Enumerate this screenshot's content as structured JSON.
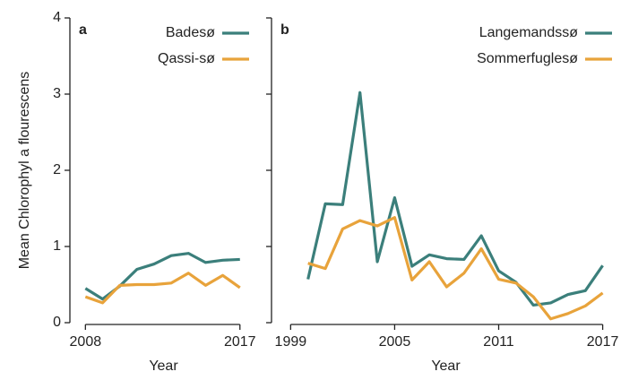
{
  "chart_data": [
    {
      "type": "line",
      "panel": "a",
      "y_label": "Mean Chlorophyl a flourescens",
      "x_label": "Year",
      "x": [
        2008,
        2009,
        2010,
        2011,
        2012,
        2013,
        2014,
        2015,
        2016,
        2017
      ],
      "series": [
        {
          "name": "Badesø",
          "color": "#3b7f7b",
          "values": [
            0.45,
            0.31,
            0.48,
            0.7,
            0.77,
            0.88,
            0.91,
            0.79,
            0.82,
            0.83
          ]
        },
        {
          "name": "Qassi-sø",
          "color": "#e8a33b",
          "values": [
            0.34,
            0.26,
            0.49,
            0.5,
            0.5,
            0.52,
            0.65,
            0.49,
            0.62,
            0.46
          ]
        }
      ],
      "xlim": [
        2007.2,
        2017.9
      ],
      "xticks": [
        2008,
        2017
      ],
      "ylim": [
        0,
        4
      ],
      "yticks": [
        0,
        1,
        2,
        3,
        4
      ],
      "legend": "upper right"
    },
    {
      "type": "line",
      "panel": "b",
      "x_label": "Year",
      "x": [
        2000,
        2001,
        2002,
        2003,
        2004,
        2005,
        2006,
        2007,
        2008,
        2009,
        2010,
        2011,
        2012,
        2013,
        2014,
        2015,
        2016,
        2017
      ],
      "series": [
        {
          "name": "Langemandssø",
          "color": "#3b7f7b",
          "values": [
            0.57,
            1.56,
            1.55,
            3.02,
            0.8,
            1.64,
            0.74,
            0.89,
            0.84,
            0.83,
            1.14,
            0.68,
            0.53,
            0.23,
            0.26,
            0.37,
            0.42,
            0.75
          ]
        },
        {
          "name": "Sommerfuglesø",
          "color": "#e8a33b",
          "values": [
            0.78,
            0.71,
            1.23,
            1.34,
            1.27,
            1.38,
            0.56,
            0.8,
            0.47,
            0.65,
            0.97,
            0.57,
            0.52,
            0.34,
            0.05,
            0.12,
            0.22,
            0.39
          ]
        }
      ],
      "xlim": [
        1998.0,
        2017.9
      ],
      "xticks": [
        1999,
        2005,
        2011,
        2017
      ],
      "ylim": [
        0,
        4
      ],
      "yticks": [
        0,
        1,
        2,
        3,
        4
      ],
      "legend": "upper right"
    }
  ]
}
